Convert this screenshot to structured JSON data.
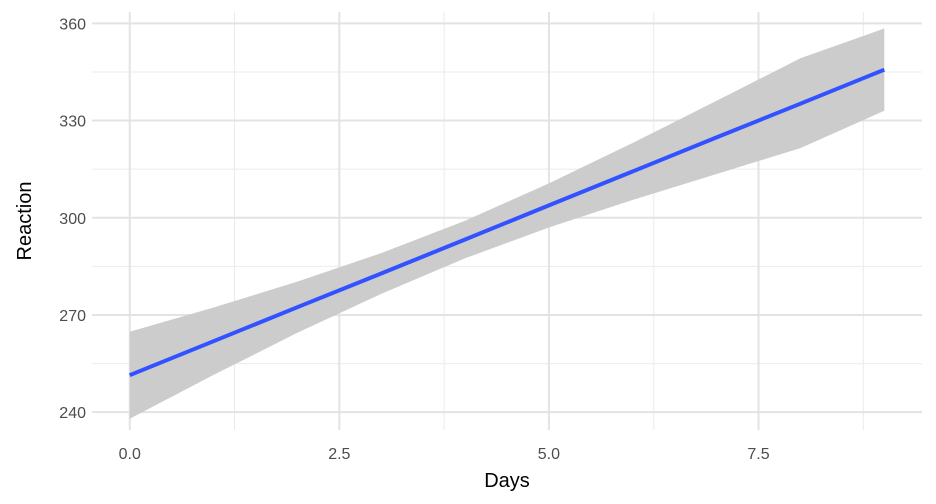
{
  "chart_data": {
    "type": "line",
    "title": "",
    "xlabel": "Days",
    "ylabel": "Reaction",
    "xlim": [
      -0.45,
      9.45
    ],
    "ylim": [
      234.5,
      363.5
    ],
    "x_ticks": [
      0.0,
      2.5,
      5.0,
      7.5
    ],
    "x_tick_labels": [
      "0.0",
      "2.5",
      "5.0",
      "7.5"
    ],
    "x_minor_ticks": [
      1.25,
      3.75,
      6.25,
      8.75
    ],
    "y_ticks": [
      240,
      270,
      300,
      330,
      360
    ],
    "y_tick_labels": [
      "240",
      "270",
      "300",
      "330",
      "360"
    ],
    "y_minor_ticks": [
      255,
      285,
      315,
      345
    ],
    "grid": true,
    "legend": "none",
    "series": [
      {
        "x": [
          0,
          1,
          2,
          3,
          4,
          5,
          6,
          7,
          8,
          9
        ],
        "values": [
          251.4,
          261.9,
          272.4,
          282.8,
          293.3,
          303.8,
          314.3,
          324.8,
          335.2,
          345.7
        ],
        "lower": [
          238.0,
          251.5,
          264.5,
          276.5,
          287.5,
          297.0,
          305.5,
          313.5,
          321.5,
          333.0
        ],
        "upper": [
          264.8,
          272.3,
          280.3,
          289.1,
          299.1,
          310.6,
          323.1,
          336.1,
          349.2,
          358.4
        ],
        "color": "#3352ff",
        "band_color": "#cccccc"
      }
    ]
  }
}
